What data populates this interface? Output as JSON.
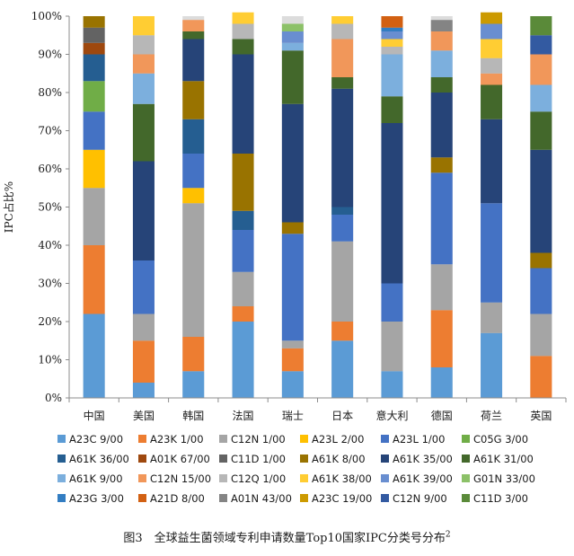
{
  "chart_data": {
    "type": "bar",
    "stacked": true,
    "ylabel": "IPC占比%",
    "ylim": [
      0,
      100
    ],
    "yticks": [
      "0%",
      "10%",
      "20%",
      "30%",
      "40%",
      "50%",
      "60%",
      "70%",
      "80%",
      "90%",
      "100%"
    ],
    "grid": false,
    "legend_position": "bottom",
    "categories": [
      "中国",
      "美国",
      "韩国",
      "法国",
      "瑞士",
      "日本",
      "意大利",
      "德国",
      "荷兰",
      "英国"
    ],
    "series": [
      {
        "name": "A23C 9/00",
        "color": "#5b9bd5",
        "values": [
          22,
          4,
          7,
          20,
          7,
          15,
          7,
          8,
          17,
          0
        ]
      },
      {
        "name": "A23K 1/00",
        "color": "#ed7d31",
        "values": [
          18,
          11,
          9,
          4,
          6,
          5,
          0,
          15,
          0,
          11
        ]
      },
      {
        "name": "C12N 1/00",
        "color": "#a5a5a5",
        "values": [
          15,
          7,
          35,
          9,
          2,
          21,
          13,
          12,
          8,
          11
        ]
      },
      {
        "name": "A23L 2/00",
        "color": "#ffc000",
        "values": [
          10,
          0,
          4,
          0,
          0,
          0,
          0,
          0,
          0,
          0
        ]
      },
      {
        "name": "A23L 1/00",
        "color": "#4472c4",
        "values": [
          10,
          14,
          9,
          11,
          28,
          7,
          10,
          24,
          26,
          12
        ]
      },
      {
        "name": "C05G 3/00",
        "color": "#70ad47",
        "values": [
          8,
          0,
          0,
          0,
          0,
          0,
          0,
          0,
          0,
          0
        ]
      },
      {
        "name": "A61K 36/00",
        "color": "#255e91",
        "values": [
          7,
          0,
          9,
          5,
          0,
          2,
          0,
          0,
          0,
          0
        ]
      },
      {
        "name": "A01K 67/00",
        "color": "#9e480e",
        "values": [
          3,
          0,
          0,
          0,
          0,
          0,
          0,
          0,
          0,
          0
        ]
      },
      {
        "name": "C11D 1/00",
        "color": "#636363",
        "values": [
          4,
          0,
          0,
          0,
          0,
          0,
          0,
          0,
          0,
          0
        ]
      },
      {
        "name": "A61K 8/00",
        "color": "#997300",
        "values": [
          3,
          0,
          10,
          15,
          3,
          0,
          0,
          4,
          0,
          4
        ]
      },
      {
        "name": "A61K 35/00",
        "color": "#264478",
        "values": [
          0,
          26,
          11,
          26,
          31,
          31,
          42,
          17,
          22,
          27
        ]
      },
      {
        "name": "A61K 31/00",
        "color": "#43682b",
        "values": [
          0,
          15,
          2,
          4,
          14,
          3,
          7,
          4,
          9,
          10
        ]
      },
      {
        "name": "A61K 9/00",
        "color": "#7cafdd",
        "values": [
          0,
          8,
          0,
          0,
          2,
          0,
          11,
          7,
          0,
          7
        ]
      },
      {
        "name": "C12N 15/00",
        "color": "#f1975a",
        "values": [
          0,
          5,
          3,
          0,
          0,
          10,
          0,
          5,
          3,
          8
        ]
      },
      {
        "name": "C12Q 1/00",
        "color": "#b7b7b7",
        "values": [
          0,
          5,
          0,
          4,
          0,
          4,
          2,
          0,
          4,
          0
        ]
      },
      {
        "name": "A61K 38/00",
        "color": "#ffcd33",
        "values": [
          0,
          5,
          0,
          3,
          0,
          2,
          2,
          0,
          5,
          0
        ]
      },
      {
        "name": "A61K 39/00",
        "color": "#698ed0",
        "values": [
          0,
          0,
          0,
          0,
          3,
          0,
          2,
          0,
          4,
          0
        ]
      },
      {
        "name": "G01N 33/00",
        "color": "#8cc168",
        "values": [
          0,
          0,
          0,
          0,
          2,
          0,
          0,
          0,
          0,
          0
        ]
      },
      {
        "name": "A23G 3/00",
        "color": "#327dc2",
        "values": [
          0,
          0,
          0,
          0,
          0,
          0,
          1,
          0,
          0,
          0
        ]
      },
      {
        "name": "A21D 8/00",
        "color": "#d26012",
        "values": [
          0,
          0,
          0,
          0,
          0,
          0,
          3,
          0,
          0,
          0
        ]
      },
      {
        "name": "A01N 43/00",
        "color": "#848484",
        "values": [
          0,
          0,
          0,
          0,
          0,
          0,
          0,
          3,
          0,
          0
        ]
      },
      {
        "name": "A23C 19/00",
        "color": "#cc9a00",
        "values": [
          0,
          0,
          0,
          0,
          0,
          0,
          0,
          0,
          3,
          0
        ]
      },
      {
        "name": "C12N 9/00",
        "color": "#335aa1",
        "values": [
          0,
          0,
          0,
          0,
          0,
          0,
          0,
          0,
          0,
          5
        ]
      },
      {
        "name": "C11D 3/00",
        "color": "#5a8a39",
        "values": [
          0,
          0,
          0,
          0,
          0,
          0,
          0,
          0,
          0,
          5
        ]
      }
    ]
  },
  "caption": {
    "text": "图3　全球益生菌领域专利申请数量Top10国家IPC分类号分布",
    "sup": "2"
  }
}
